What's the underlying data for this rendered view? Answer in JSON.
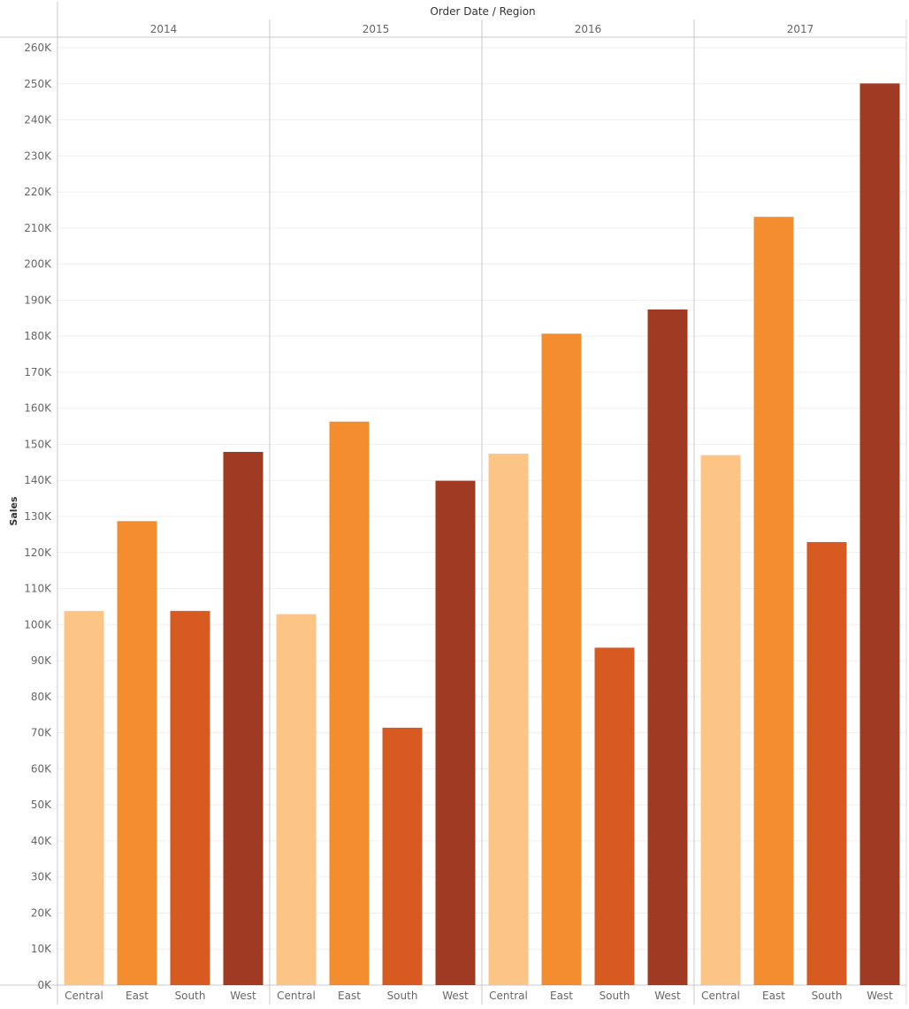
{
  "chart_data": {
    "type": "bar",
    "title": "Order Date / Region",
    "ylabel": "Sales",
    "xlabel": "",
    "ylim": [
      0,
      260000
    ],
    "ytick_step": 10000,
    "grid": true,
    "groups": [
      {
        "year": "2014",
        "categories": [
          "Central",
          "East",
          "South",
          "West"
        ],
        "values": [
          103800,
          128700,
          103800,
          147900
        ]
      },
      {
        "year": "2015",
        "categories": [
          "Central",
          "East",
          "South",
          "West"
        ],
        "values": [
          102900,
          156300,
          71400,
          139900
        ]
      },
      {
        "year": "2016",
        "categories": [
          "Central",
          "East",
          "South",
          "West"
        ],
        "values": [
          147400,
          180700,
          93600,
          187400
        ]
      },
      {
        "year": "2017",
        "categories": [
          "Central",
          "East",
          "South",
          "West"
        ],
        "values": [
          147000,
          213100,
          122900,
          250100
        ]
      }
    ],
    "colors": {
      "Central": "#fdc585",
      "East": "#f28e30",
      "South": "#d75b20",
      "West": "#a03a22"
    }
  }
}
